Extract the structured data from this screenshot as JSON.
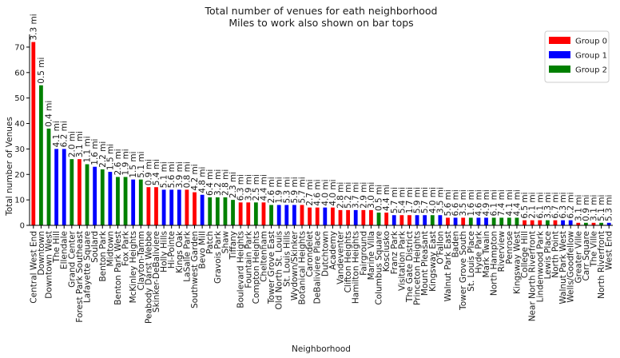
{
  "colors": {
    "Group 0": "#ff0000",
    "Group 1": "#0000ff",
    "Group 2": "#008000"
  },
  "chart_data": {
    "type": "bar",
    "title": "Total number of venues for eath neighborhood",
    "subtitle": "Miles to work also shown on bar tops",
    "xlabel": "Neighborhood",
    "ylabel": "Total number of Venues",
    "ylim": [
      0,
      75
    ],
    "yticks": [
      0,
      10,
      20,
      30,
      40,
      50,
      60,
      70
    ],
    "grid": false,
    "legend_position": "top-right",
    "legend": [
      "Group 0",
      "Group 1",
      "Group 2"
    ],
    "categories": [
      "Central West End",
      "Downtown",
      "Downtown West",
      "The Hill",
      "Ellendale",
      "Grand Center",
      "Forest Park Southeast",
      "Lafayette Square",
      "Soulard",
      "Benton Park",
      "Midtown",
      "Benton Park West",
      "Fox Park",
      "McKinley Heights",
      "Clayton-Tamm",
      "Peabody Darst Webbe",
      "Skinker-DeBaliviere",
      "Holly Hills",
      "Hi-Pointe",
      "Kings Oak",
      "LaSalle Park",
      "Southwest Garden",
      "Bevo Mill",
      "Patch",
      "Gravois Park",
      "Shaw",
      "Tiffany",
      "Boulevard Heights",
      "Fountain Park",
      "Compton Heights",
      "Cheltenham",
      "Tower Grove East",
      "Old North St. Louis",
      "St. Louis Hills",
      "Wydown/Skinker",
      "Botanical Heights",
      "Carondelet",
      "DeBaliviere Place",
      "Dutchtown",
      "Academy",
      "Vandeventer",
      "Clifton Heights",
      "Hamilton Heights",
      "Fairground",
      "Marine Villa",
      "Columbus Square",
      "Kosciusko",
      "Franz Park",
      "Visitation Park",
      "The Gate District",
      "Princeton Heights",
      "Mount Pleasant",
      "Kingsway East",
      "O'Fallon",
      "Walnut Park East",
      "Baden",
      "Tower Grove South",
      "St. Louis Place",
      "Hyde Park",
      "Mark Twain",
      "North Hampton",
      "Riverview",
      "Penrose",
      "Kingsway West",
      "College Hill",
      "Near North Riverfront",
      "Lindenwood Park",
      "Lewis Place",
      "North Point",
      "Walnut Park West",
      "Wells/Goodfellow",
      "Greater Ville",
      "Carr Square",
      "The Ville",
      "North Riverfront",
      "West End"
    ],
    "values": [
      72,
      55,
      38,
      30,
      30,
      26,
      26,
      24,
      23,
      22,
      21,
      19,
      19,
      18,
      18,
      15,
      15,
      14,
      14,
      14,
      14,
      13,
      12,
      11,
      11,
      11,
      10,
      9,
      9,
      9,
      9,
      8,
      8,
      8,
      8,
      8,
      7,
      7,
      7,
      7,
      6,
      6,
      6,
      6,
      6,
      5,
      5,
      4,
      4,
      4,
      4,
      4,
      4,
      4,
      3,
      3,
      3,
      3,
      3,
      3,
      3,
      3,
      3,
      3,
      2,
      2,
      2,
      2,
      2,
      2,
      2,
      1,
      1,
      1,
      1,
      1
    ],
    "groups": [
      0,
      2,
      2,
      1,
      1,
      2,
      0,
      2,
      1,
      2,
      1,
      2,
      2,
      1,
      2,
      0,
      0,
      1,
      1,
      1,
      0,
      0,
      1,
      2,
      2,
      2,
      2,
      0,
      0,
      2,
      0,
      2,
      1,
      1,
      1,
      0,
      0,
      0,
      1,
      0,
      0,
      0,
      1,
      0,
      0,
      2,
      0,
      1,
      0,
      0,
      1,
      1,
      2,
      1,
      0,
      1,
      0,
      2,
      1,
      1,
      2,
      2,
      2,
      2,
      0,
      0,
      0,
      2,
      0,
      1,
      1,
      0,
      2,
      0,
      2,
      1
    ],
    "bar_labels": [
      "3.3 mi",
      "0.5 mi",
      "0.4 mi",
      "4.1 mi",
      "6.2 mi",
      "2.0 mi",
      "3.1 mi",
      "1.1 mi",
      "1.6 mi",
      "2.2 mi",
      "1.5 mi",
      "2.6 mi",
      "1.9 mi",
      "1.5 mi",
      "5.1 mi",
      "0.9 mi",
      "5.4 mi",
      "5.1 mi",
      "5.6 mi",
      "3.9 mi",
      "0.8 mi",
      "4.2 mi",
      "4.8 mi",
      "6.4 mi",
      "3.2 mi",
      "2.8 mi",
      "2.3 mi",
      "6.3 mi",
      "3.9 mi",
      "2.5 mi",
      "4.4 mi",
      "2.6 mi",
      "1.9 mi",
      "5.3 mi",
      "5.9 mi",
      "5.7 mi",
      "2.7 mi",
      "4.6 mi",
      "4.0 mi",
      "4.0 mi",
      "2.8 mi",
      "5.2 mi",
      "3.7 mi",
      "2.9 mi",
      "3.0 mi",
      "0.5 mi",
      "4.4 mi",
      "5.7 mi",
      "5.4 mi",
      "1.7 mi",
      "5.9 mi",
      "5.7 mi",
      "4.0 mi",
      "3.5 mi",
      "5.6 mi",
      "6.6 mi",
      "3.5 mi",
      "1.6 mi",
      "4.6 mi",
      "4.9 mi",
      "6.1 mi",
      "7.4 mi",
      "4.1 mi",
      "4.4 mi",
      "6.5 mi",
      "2.1 mi",
      "6.1 mi",
      "3.3 mi",
      "6.7 mi",
      "6.3 mi",
      "6.2 mi",
      "3.1 mi",
      "0.9 mi",
      "3.1 mi",
      "5.1 mi",
      "5.3 mi"
    ]
  }
}
